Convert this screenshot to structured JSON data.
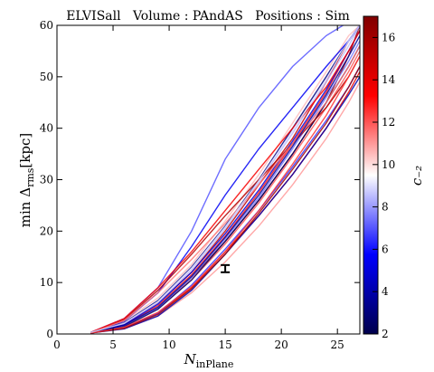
{
  "chart_data": {
    "type": "line",
    "title": "ELVISall   Volume : PAndAS   Positions : Sim",
    "xlabel": {
      "main": "N",
      "sub": "inPlane"
    },
    "ylabel": {
      "pre": "min Δ",
      "sub": "rms",
      "post": "[kpc]"
    },
    "xlim": [
      0,
      27
    ],
    "ylim": [
      0,
      60
    ],
    "x_ticks": [
      0,
      5,
      10,
      15,
      20,
      25
    ],
    "y_ticks": [
      0,
      10,
      20,
      30,
      40,
      50,
      60
    ],
    "grid": false,
    "colorbar": {
      "label": "c₋₂",
      "range": [
        2,
        17
      ],
      "ticks": [
        2,
        4,
        6,
        8,
        10,
        12,
        14,
        16
      ],
      "colormap": "seismic"
    },
    "errorbar": {
      "x": 15,
      "y": 12.7,
      "yerr": 0.7,
      "color": "#000000"
    },
    "curves": [
      {
        "c": 16.5,
        "x": [
          3,
          6,
          9,
          12,
          15,
          18,
          21,
          24,
          26,
          27
        ],
        "y": [
          0.2,
          1.5,
          5,
          11,
          18,
          26,
          35,
          45,
          54,
          60
        ]
      },
      {
        "c": 15.0,
        "x": [
          3,
          6,
          9,
          12,
          15,
          18,
          21,
          24,
          26,
          27
        ],
        "y": [
          0.3,
          2,
          6,
          12,
          20,
          29,
          38,
          49,
          57,
          60
        ]
      },
      {
        "c": 14.0,
        "x": [
          3,
          6,
          9,
          12,
          15,
          18,
          21,
          24,
          26,
          27
        ],
        "y": [
          0.2,
          1.2,
          4,
          9,
          16,
          23,
          31,
          40,
          47,
          51
        ]
      },
      {
        "c": 13.0,
        "x": [
          3,
          6,
          9,
          12,
          15,
          18,
          21,
          24,
          26,
          27
        ],
        "y": [
          0.2,
          1.8,
          5.5,
          11.5,
          19,
          27.5,
          37,
          47,
          55,
          59
        ]
      },
      {
        "c": 12.0,
        "x": [
          3,
          6,
          9,
          12,
          15,
          18,
          21,
          24,
          26,
          27
        ],
        "y": [
          0.3,
          1.5,
          5,
          10.5,
          17.5,
          25.5,
          34.5,
          44,
          51,
          55
        ]
      },
      {
        "c": 11.0,
        "x": [
          3,
          6,
          9,
          12,
          15,
          18,
          21,
          24,
          26,
          27
        ],
        "y": [
          0.2,
          1,
          3.5,
          8,
          14,
          21,
          29,
          38,
          45,
          49
        ]
      },
      {
        "c": 10.5,
        "x": [
          3,
          6,
          9,
          12,
          15,
          18,
          21,
          24,
          26,
          27
        ],
        "y": [
          0.3,
          2.5,
          7,
          13.5,
          22,
          31,
          41,
          51,
          58,
          60
        ]
      },
      {
        "c": 9.5,
        "x": [
          3,
          6,
          9,
          12,
          15,
          18,
          21,
          24,
          26,
          27
        ],
        "y": [
          0.2,
          1.3,
          4.5,
          10,
          17,
          24.5,
          33,
          42,
          49,
          53
        ]
      },
      {
        "c": 8.5,
        "x": [
          3,
          6,
          9,
          12,
          15,
          18,
          21,
          24,
          26,
          27
        ],
        "y": [
          0.3,
          2,
          6,
          12.5,
          20.5,
          29.5,
          39,
          49,
          56,
          60
        ]
      },
      {
        "c": 7.5,
        "x": [
          3,
          6,
          9,
          12,
          15,
          18,
          21,
          24,
          26,
          27
        ],
        "y": [
          0.2,
          1.6,
          5,
          11,
          18.5,
          26.5,
          36,
          46,
          53,
          57
        ]
      },
      {
        "c": 6.5,
        "x": [
          3,
          6,
          9,
          12,
          15,
          18,
          21,
          24,
          26,
          27
        ],
        "y": [
          0.3,
          1.2,
          4,
          9.5,
          16.5,
          24,
          32.5,
          41.5,
          48,
          52
        ]
      },
      {
        "c": 5.0,
        "x": [
          3,
          6,
          9,
          12,
          15,
          18,
          21,
          24,
          26,
          27
        ],
        "y": [
          0.2,
          1.8,
          5.8,
          12,
          19.5,
          28,
          37.5,
          47.5,
          55,
          59
        ]
      },
      {
        "c": 4.0,
        "x": [
          3,
          6,
          9,
          12,
          15,
          18,
          21,
          24,
          26,
          27
        ],
        "y": [
          0.2,
          1,
          3.5,
          8.5,
          15.5,
          23,
          31,
          40,
          46.5,
          50
        ]
      },
      {
        "c": 3.0,
        "x": [
          3,
          6,
          9,
          12,
          15,
          18,
          21,
          24,
          26,
          27
        ],
        "y": [
          0.3,
          2.2,
          6.5,
          13,
          21,
          30,
          40,
          50,
          57,
          60
        ]
      },
      {
        "c": 2.5,
        "x": [
          3,
          6,
          9,
          12,
          15,
          18,
          21,
          24,
          26,
          27
        ],
        "y": [
          0.2,
          1.4,
          4.8,
          10.5,
          18,
          26,
          35,
          45,
          52,
          56
        ]
      },
      {
        "c": 7.0,
        "x": [
          3,
          6,
          9,
          12,
          15,
          18,
          21,
          24,
          25.5
        ],
        "y": [
          0.3,
          3,
          9,
          20,
          34,
          44,
          52,
          58,
          60
        ]
      },
      {
        "c": 5.5,
        "x": [
          3,
          6,
          9,
          12,
          15,
          18,
          21,
          24,
          26,
          27
        ],
        "y": [
          0.2,
          2.5,
          8,
          17,
          27,
          36,
          44,
          52,
          57,
          60
        ]
      },
      {
        "c": 15.5,
        "x": [
          3,
          6,
          9,
          12,
          15,
          18,
          21,
          24,
          26,
          27
        ],
        "y": [
          0.2,
          2.8,
          8.5,
          15.5,
          23,
          30,
          37,
          44,
          50,
          54
        ]
      },
      {
        "c": 13.5,
        "x": [
          3,
          6,
          9,
          12,
          15,
          18,
          21,
          24,
          26,
          27
        ],
        "y": [
          0.3,
          3,
          9,
          16,
          24,
          32,
          40,
          48,
          55,
          59
        ]
      },
      {
        "c": 11.5,
        "x": [
          3,
          6,
          9,
          12,
          15,
          18,
          21,
          24,
          26,
          27
        ],
        "y": [
          0.2,
          2.6,
          8,
          14.5,
          21.5,
          29,
          37,
          45,
          52,
          56
        ]
      },
      {
        "c": 16.0,
        "x": [
          3,
          6,
          9,
          12,
          15,
          18,
          21,
          24,
          26,
          27
        ],
        "y": [
          0.2,
          1.1,
          3.8,
          8.8,
          15.5,
          23.5,
          32,
          41,
          48,
          52
        ]
      },
      {
        "c": 3.5,
        "x": [
          3,
          6,
          9,
          12,
          15,
          18,
          21,
          24,
          26,
          27
        ],
        "y": [
          0.3,
          1.7,
          5.2,
          11.2,
          18.8,
          27,
          36.5,
          46.5,
          54,
          58
        ]
      },
      {
        "c": 12.5,
        "x": [
          3,
          6,
          9,
          12,
          15,
          18,
          21,
          24,
          26,
          27
        ],
        "y": [
          0.2,
          1.3,
          4.2,
          9.2,
          16,
          24,
          33,
          42.5,
          50,
          54
        ]
      },
      {
        "c": 9.0,
        "x": [
          3,
          6,
          9,
          12,
          15,
          18,
          21,
          24,
          26,
          27
        ],
        "y": [
          0.3,
          2.1,
          6.3,
          12.8,
          20.8,
          29.8,
          39.5,
          49.5,
          57,
          60
        ]
      }
    ]
  }
}
